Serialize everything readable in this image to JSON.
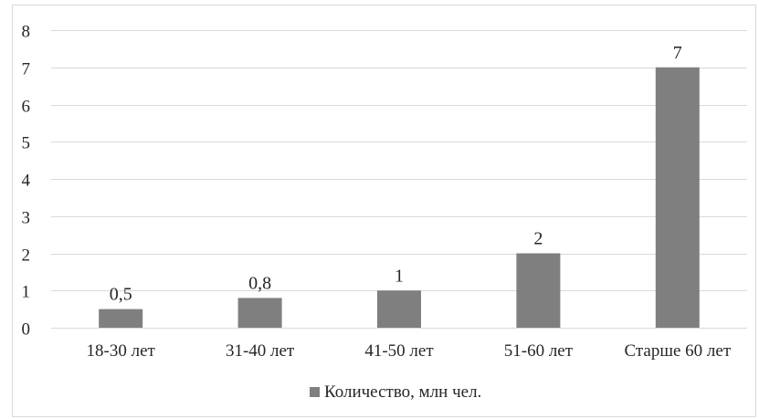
{
  "chart_data": {
    "type": "bar",
    "title": "",
    "xlabel": "",
    "ylabel": "",
    "categories": [
      "18-30 лет",
      "31-40 лет",
      "41-50 лет",
      "51-60 лет",
      "Старше 60 лет"
    ],
    "series": [
      {
        "name": "Количество, млн чел.",
        "values": [
          0.5,
          0.8,
          1,
          2,
          7
        ],
        "labels": [
          "0,5",
          "0,8",
          "1",
          "2",
          "7"
        ],
        "color": "#7f7f7f"
      }
    ],
    "ylim": [
      0,
      8
    ],
    "yticks": [
      "0",
      "1",
      "2",
      "3",
      "4",
      "5",
      "6",
      "7",
      "8"
    ],
    "grid": true,
    "legend": "bottom-center"
  }
}
